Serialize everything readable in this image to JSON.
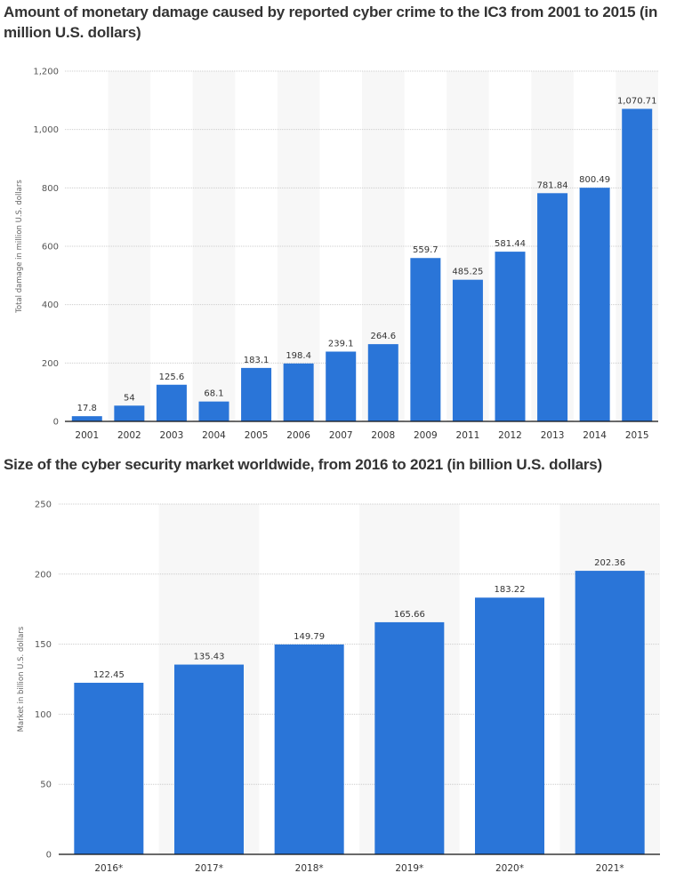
{
  "chart_data": [
    {
      "type": "bar",
      "title": "Amount of monetary damage caused by reported cyber crime to the IC3 from 2001 to 2015 (in million U.S. dollars)",
      "xlabel": "",
      "ylabel": "Total damage in million U.S. dollars",
      "categories": [
        "2001",
        "2002",
        "2003",
        "2004",
        "2005",
        "2006",
        "2007",
        "2008",
        "2009",
        "2011",
        "2012",
        "2013",
        "2014",
        "2015"
      ],
      "values": [
        17.8,
        54,
        125.6,
        68.1,
        183.1,
        198.4,
        239.1,
        264.6,
        559.7,
        485.25,
        581.44,
        781.84,
        800.49,
        1070.71
      ],
      "data_labels": [
        "17.8",
        "54",
        "125.6",
        "68.1",
        "183.1",
        "198.4",
        "239.1",
        "264.6",
        "559.7",
        "485.25",
        "581.44",
        "781.84",
        "800.49",
        "1,070.71"
      ],
      "ylim": [
        0,
        1200
      ],
      "yticks": [
        0,
        200,
        400,
        600,
        800,
        1000,
        1200
      ],
      "ytick_labels": [
        "0",
        "200",
        "400",
        "600",
        "800",
        "1,000",
        "1,200"
      ],
      "grid": true,
      "bar_color": "#2a75d8"
    },
    {
      "type": "bar",
      "title": "Size of the cyber security market worldwide, from 2016 to 2021 (in billion U.S. dollars)",
      "xlabel": "",
      "ylabel": "Market in billion U.S. dollars",
      "categories": [
        "2016*",
        "2017*",
        "2018*",
        "2019*",
        "2020*",
        "2021*"
      ],
      "values": [
        122.45,
        135.43,
        149.79,
        165.66,
        183.22,
        202.36
      ],
      "data_labels": [
        "122.45",
        "135.43",
        "149.79",
        "165.66",
        "183.22",
        "202.36"
      ],
      "ylim": [
        0,
        250
      ],
      "yticks": [
        0,
        50,
        100,
        150,
        200,
        250
      ],
      "ytick_labels": [
        "0",
        "50",
        "100",
        "150",
        "200",
        "250"
      ],
      "grid": true,
      "bar_color": "#2a75d8"
    }
  ]
}
